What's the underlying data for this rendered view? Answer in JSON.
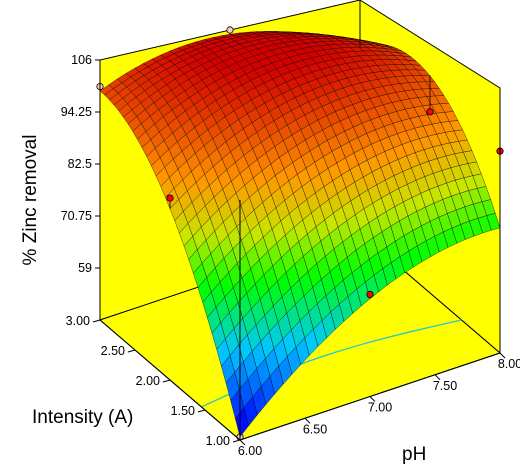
{
  "chart_data": {
    "type": "surface3d",
    "title": "",
    "zlabel": "% Zinc removal",
    "xlabel": "pH",
    "ylabel": "Intensity (A)",
    "x_ticks": [
      "6.00",
      "6.50",
      "7.00",
      "7.50",
      "8.00"
    ],
    "y_ticks": [
      "1.00",
      "1.50",
      "2.00",
      "2.50",
      "3.00"
    ],
    "z_ticks": [
      "59",
      "70.75",
      "82.5",
      "94.25",
      "106"
    ],
    "xlim": [
      6.0,
      8.0
    ],
    "ylim": [
      1.0,
      3.0
    ],
    "zlim": [
      47.25,
      106
    ],
    "surface_corners": {
      "pH_6_I_1": 52,
      "pH_8_I_1": 74,
      "pH_6_I_3": 103,
      "pH_8_I_3": 93
    },
    "surface_peak": {
      "pH": 7.0,
      "intensity": 2.9,
      "value": 106
    },
    "design_points": [
      {
        "pH": 6.0,
        "intensity": 3.0,
        "value": 100,
        "position": "below"
      },
      {
        "pH": 7.0,
        "intensity": 3.0,
        "value": 106,
        "position": "below"
      },
      {
        "pH": 8.0,
        "intensity": 3.0,
        "value": 111,
        "position": "above"
      },
      {
        "pH": 6.0,
        "intensity": 2.0,
        "value": 90,
        "position": "above"
      },
      {
        "pH": 7.0,
        "intensity": 2.0,
        "value": 100,
        "position": "below"
      },
      {
        "pH": 8.0,
        "intensity": 2.0,
        "value": 90,
        "position": "above"
      },
      {
        "pH": 7.0,
        "intensity": 1.0,
        "value": 71,
        "position": "above"
      },
      {
        "pH": 8.0,
        "intensity": 1.0,
        "value": 92,
        "position": "above"
      },
      {
        "pH": 6.0,
        "intensity": 1.0,
        "value": 48,
        "position": "below"
      }
    ],
    "contour_level": 59,
    "colors": {
      "background": "#ffff00",
      "surface_low": "#0000ff",
      "surface_mid": "#00ff00",
      "surface_high": "#ff0000",
      "point_above": "#ff0000",
      "point_below": "#ffc8c8",
      "contour": "#30c8c8"
    },
    "grid": false,
    "legend": "none"
  }
}
